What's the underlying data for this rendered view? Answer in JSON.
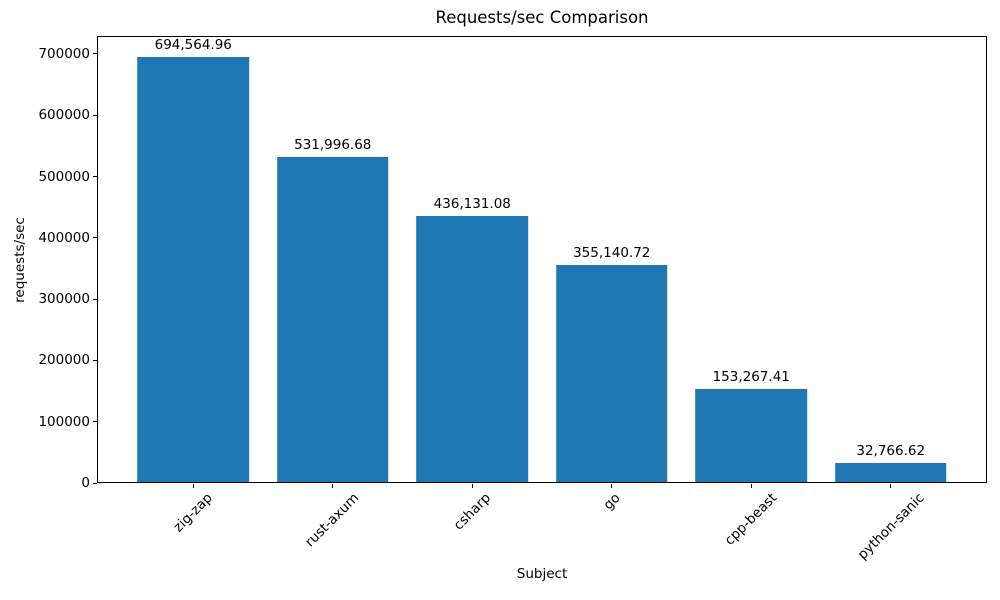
{
  "chart_data": {
    "type": "bar",
    "title": "Requests/sec Comparison",
    "xlabel": "Subject",
    "ylabel": "requests/sec",
    "categories": [
      "zig-zap",
      "rust-axum",
      "csharp",
      "go",
      "cpp-beast",
      "python-sanic"
    ],
    "values": [
      694564.96,
      531996.68,
      436131.08,
      355140.72,
      153267.41,
      32766.62
    ],
    "value_labels": [
      "694,564.96",
      "531,996.68",
      "436,131.08",
      "355,140.72",
      "153,267.41",
      "32,766.62"
    ],
    "bar_color": "#1f77b4",
    "text_color": "#000000",
    "ylim": [
      0,
      729293
    ],
    "yticks": [
      0,
      100000,
      200000,
      300000,
      400000,
      500000,
      600000,
      700000
    ],
    "ytick_labels": [
      "0",
      "100000",
      "200000",
      "300000",
      "400000",
      "500000",
      "600000",
      "700000"
    ],
    "grid": false,
    "legend": null,
    "xtick_rotation_degrees": 45
  }
}
